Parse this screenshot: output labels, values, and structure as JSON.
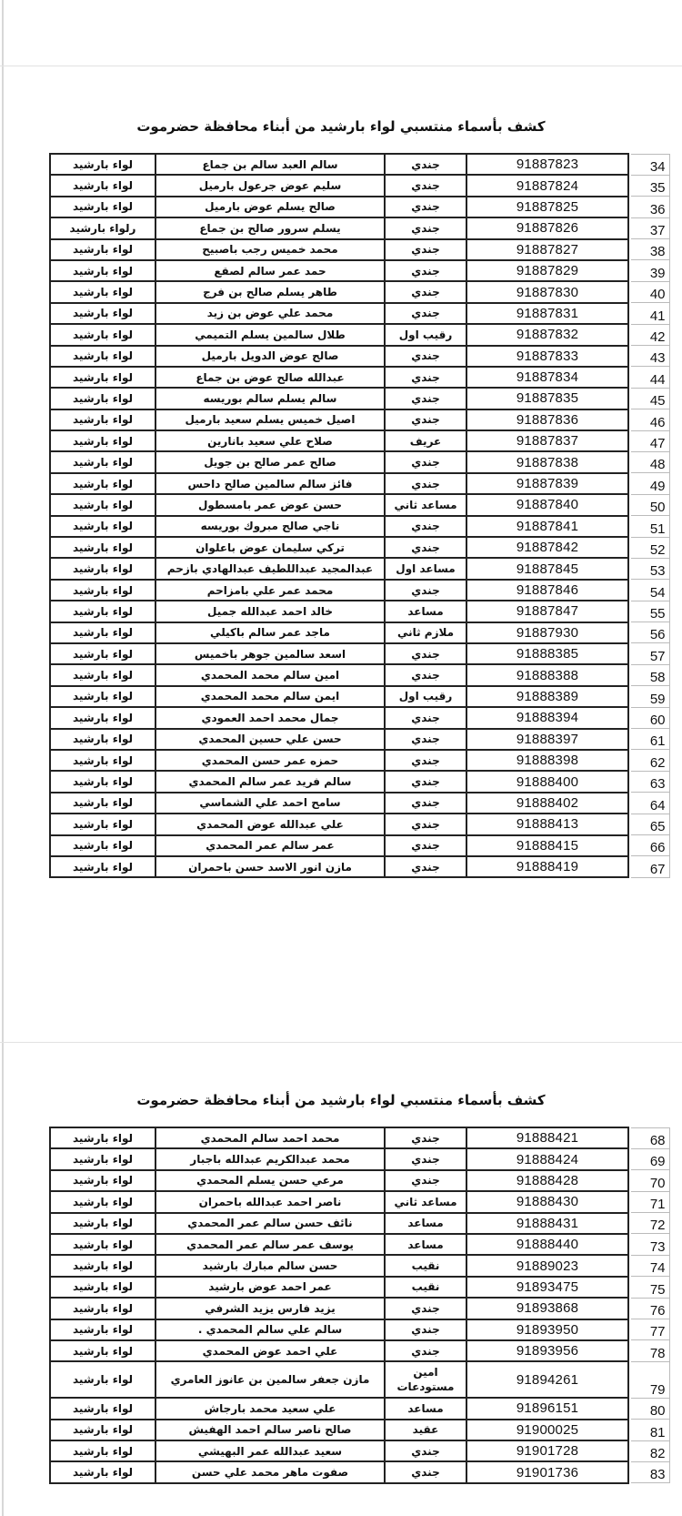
{
  "pages": [
    {
      "title": "كشف بأسماء منتسبي لواء بارشيد من أبناء محافظة حضرموت",
      "rows": [
        {
          "index": "34",
          "number": "91887823",
          "rank": "جندي",
          "name": "سالم العبد سالم بن جماع",
          "unit": "لواء بارشيد"
        },
        {
          "index": "35",
          "number": "91887824",
          "rank": "جندي",
          "name": "سليم عوض جرعول بارميل",
          "unit": "لواء بارشيد"
        },
        {
          "index": "36",
          "number": "91887825",
          "rank": "جندي",
          "name": "صالح يسلم عوض بارميل",
          "unit": "لواء بارشيد"
        },
        {
          "index": "37",
          "number": "91887826",
          "rank": "جندي",
          "name": "يسلم سرور صالح بن جماع",
          "unit": "رلواء بارشيد"
        },
        {
          "index": "38",
          "number": "91887827",
          "rank": "جندي",
          "name": "محمد خميس رجب باصبيح",
          "unit": "لواء بارشيد"
        },
        {
          "index": "39",
          "number": "91887829",
          "rank": "جندي",
          "name": "حمد عمر سالم لصقع",
          "unit": "لواء بارشيد"
        },
        {
          "index": "40",
          "number": "91887830",
          "rank": "جندي",
          "name": "طاهر يسلم صالح بن فرج",
          "unit": "لواء بارشيد"
        },
        {
          "index": "41",
          "number": "91887831",
          "rank": "جندي",
          "name": "محمد علي عوض بن زيد",
          "unit": "لواء بارشيد"
        },
        {
          "index": "42",
          "number": "91887832",
          "rank": "رقيب اول",
          "name": "طلال سالمين يسلم التميمي",
          "unit": "لواء بارشيد"
        },
        {
          "index": "43",
          "number": "91887833",
          "rank": "جندي",
          "name": "صالح عوض الدويل بارميل",
          "unit": "لواء بارشيد"
        },
        {
          "index": "44",
          "number": "91887834",
          "rank": "جندي",
          "name": "عبدالله صالح عوض بن جماع",
          "unit": "لواء بارشيد"
        },
        {
          "index": "45",
          "number": "91887835",
          "rank": "جندي",
          "name": "سالم يسلم سالم بوريسه",
          "unit": "لواء بارشيد"
        },
        {
          "index": "46",
          "number": "91887836",
          "rank": "جندي",
          "name": "اصيل خميس يسلم سعيد بارميل",
          "unit": "لواء بارشيد"
        },
        {
          "index": "47",
          "number": "91887837",
          "rank": "عريف",
          "name": "صلاح علي سعيد بانارين",
          "unit": "لواء بارشيد"
        },
        {
          "index": "48",
          "number": "91887838",
          "rank": "جندي",
          "name": "صالح عمر صالح بن جويل",
          "unit": "لواء بارشيد"
        },
        {
          "index": "49",
          "number": "91887839",
          "rank": "جندي",
          "name": "فائز سالم سالمين صالح داحس",
          "unit": "لواء بارشيد"
        },
        {
          "index": "50",
          "number": "91887840",
          "rank": "مساعد ثاني",
          "name": "حسن عوض عمر بامسطول",
          "unit": "لواء بارشيد"
        },
        {
          "index": "51",
          "number": "91887841",
          "rank": "جندي",
          "name": "ناجي صالح مبروك بوريسه",
          "unit": "لواء بارشيد"
        },
        {
          "index": "52",
          "number": "91887842",
          "rank": "جندي",
          "name": "تركي سليمان عوض باعلوان",
          "unit": "لواء بارشيد"
        },
        {
          "index": "53",
          "number": "91887845",
          "rank": "مساعد اول",
          "name": "عبدالمجيد عبداللطيف عبدالهادي بازحم",
          "unit": "لواء بارشيد"
        },
        {
          "index": "54",
          "number": "91887846",
          "rank": "جندي",
          "name": "محمد عمر علي بامزاحم",
          "unit": "لواء بارشيد"
        },
        {
          "index": "55",
          "number": "91887847",
          "rank": "مساعد",
          "name": "خالد احمد عبدالله جميل",
          "unit": "لواء بارشيد"
        },
        {
          "index": "56",
          "number": "91887930",
          "rank": "ملازم ثاني",
          "name": "ماجد عمر سالم باكيلي",
          "unit": "لواء بارشيد"
        },
        {
          "index": "57",
          "number": "91888385",
          "rank": "جندي",
          "name": "اسعد سالمين جوهر باخميس",
          "unit": "لواء بارشيد"
        },
        {
          "index": "58",
          "number": "91888388",
          "rank": "جندي",
          "name": "امين سالم محمد المحمدي",
          "unit": "لواء بارشيد"
        },
        {
          "index": "59",
          "number": "91888389",
          "rank": "رقيب اول",
          "name": "ايمن سالم محمد المحمدي",
          "unit": "لواء بارشيد"
        },
        {
          "index": "60",
          "number": "91888394",
          "rank": "جندي",
          "name": "جمال محمد احمد العمودي",
          "unit": "لواء بارشيد"
        },
        {
          "index": "61",
          "number": "91888397",
          "rank": "جندي",
          "name": "حسن علي حسين المحمدي",
          "unit": "لواء بارشيد"
        },
        {
          "index": "62",
          "number": "91888398",
          "rank": "جندي",
          "name": "حمزه عمر حسن المحمدي",
          "unit": "لواء بارشيد"
        },
        {
          "index": "63",
          "number": "91888400",
          "rank": "جندي",
          "name": "سالم فريد عمر سالم المحمدي",
          "unit": "لواء بارشيد"
        },
        {
          "index": "64",
          "number": "91888402",
          "rank": "جندي",
          "name": "سامح احمد علي الشماسي",
          "unit": "لواء بارشيد"
        },
        {
          "index": "65",
          "number": "91888413",
          "rank": "جندي",
          "name": "علي عبدالله عوض المحمدي",
          "unit": "لواء بارشيد"
        },
        {
          "index": "66",
          "number": "91888415",
          "rank": "جندي",
          "name": "عمر سالم عمر المحمدي",
          "unit": "لواء بارشيد"
        },
        {
          "index": "67",
          "number": "91888419",
          "rank": "جندي",
          "name": "مازن انور الاسد حسن باحمران",
          "unit": "لواء بارشيد"
        }
      ]
    },
    {
      "title": "كشف بأسماء منتسبي لواء بارشيد من أبناء محافظة حضرموت",
      "rows": [
        {
          "index": "68",
          "number": "91888421",
          "rank": "جندي",
          "name": "محمد احمد سالم المحمدي",
          "unit": "لواء بارشيد"
        },
        {
          "index": "69",
          "number": "91888424",
          "rank": "جندي",
          "name": "محمد عبدالكريم عبدالله باجبار",
          "unit": "لواء بارشيد"
        },
        {
          "index": "70",
          "number": "91888428",
          "rank": "جندي",
          "name": "مرعي حسن يسلم المحمدي",
          "unit": "لواء بارشيد"
        },
        {
          "index": "71",
          "number": "91888430",
          "rank": "مساعد ثاني",
          "name": "ناصر احمد عبدالله باحمران",
          "unit": "لواء بارشيد"
        },
        {
          "index": "72",
          "number": "91888431",
          "rank": "مساعد",
          "name": "نائف حسن سالم عمر المحمدي",
          "unit": "لواء بارشيد"
        },
        {
          "index": "73",
          "number": "91888440",
          "rank": "مساعد",
          "name": "يوسف عمر سالم عمر المحمدي",
          "unit": "لواء بارشيد"
        },
        {
          "index": "74",
          "number": "91889023",
          "rank": "نقيب",
          "name": "حسن سالم مبارك بارشيد",
          "unit": "لواء بارشيد"
        },
        {
          "index": "75",
          "number": "91893475",
          "rank": "نقيب",
          "name": "عمر احمد عوض بارشيد",
          "unit": "لواء بارشيد"
        },
        {
          "index": "76",
          "number": "91893868",
          "rank": "جندي",
          "name": "يزيد فارس يزيد الشرفي",
          "unit": "لواء بارشيد"
        },
        {
          "index": "77",
          "number": "91893950",
          "rank": "جندي",
          "name": "سالم علي سالم المحمدي .",
          "unit": "لواء بارشيد"
        },
        {
          "index": "78",
          "number": "91893956",
          "rank": "جندي",
          "name": "علي احمد عوض المحمدي",
          "unit": "لواء بارشيد"
        },
        {
          "index": "79",
          "number": "91894261",
          "rank": "امين مستودعات",
          "name": "مازن جعفر سالمين بن عانوز العامري",
          "unit": "لواء بارشيد"
        },
        {
          "index": "80",
          "number": "91896151",
          "rank": "مساعد",
          "name": "علي سعيد محمد بارجاش",
          "unit": "لواء بارشيد"
        },
        {
          "index": "81",
          "number": "91900025",
          "rank": "عقيد",
          "name": "صالح ناصر سالم احمد الهفيش",
          "unit": "لواء بارشيد"
        },
        {
          "index": "82",
          "number": "91901728",
          "rank": "جندي",
          "name": "سعيد عبدالله عمر البهيشي",
          "unit": "لواء بارشيد"
        },
        {
          "index": "83",
          "number": "91901736",
          "rank": "جندي",
          "name": "صفوت ماهر محمد علي حسن",
          "unit": "لواء بارشيد"
        }
      ]
    }
  ]
}
